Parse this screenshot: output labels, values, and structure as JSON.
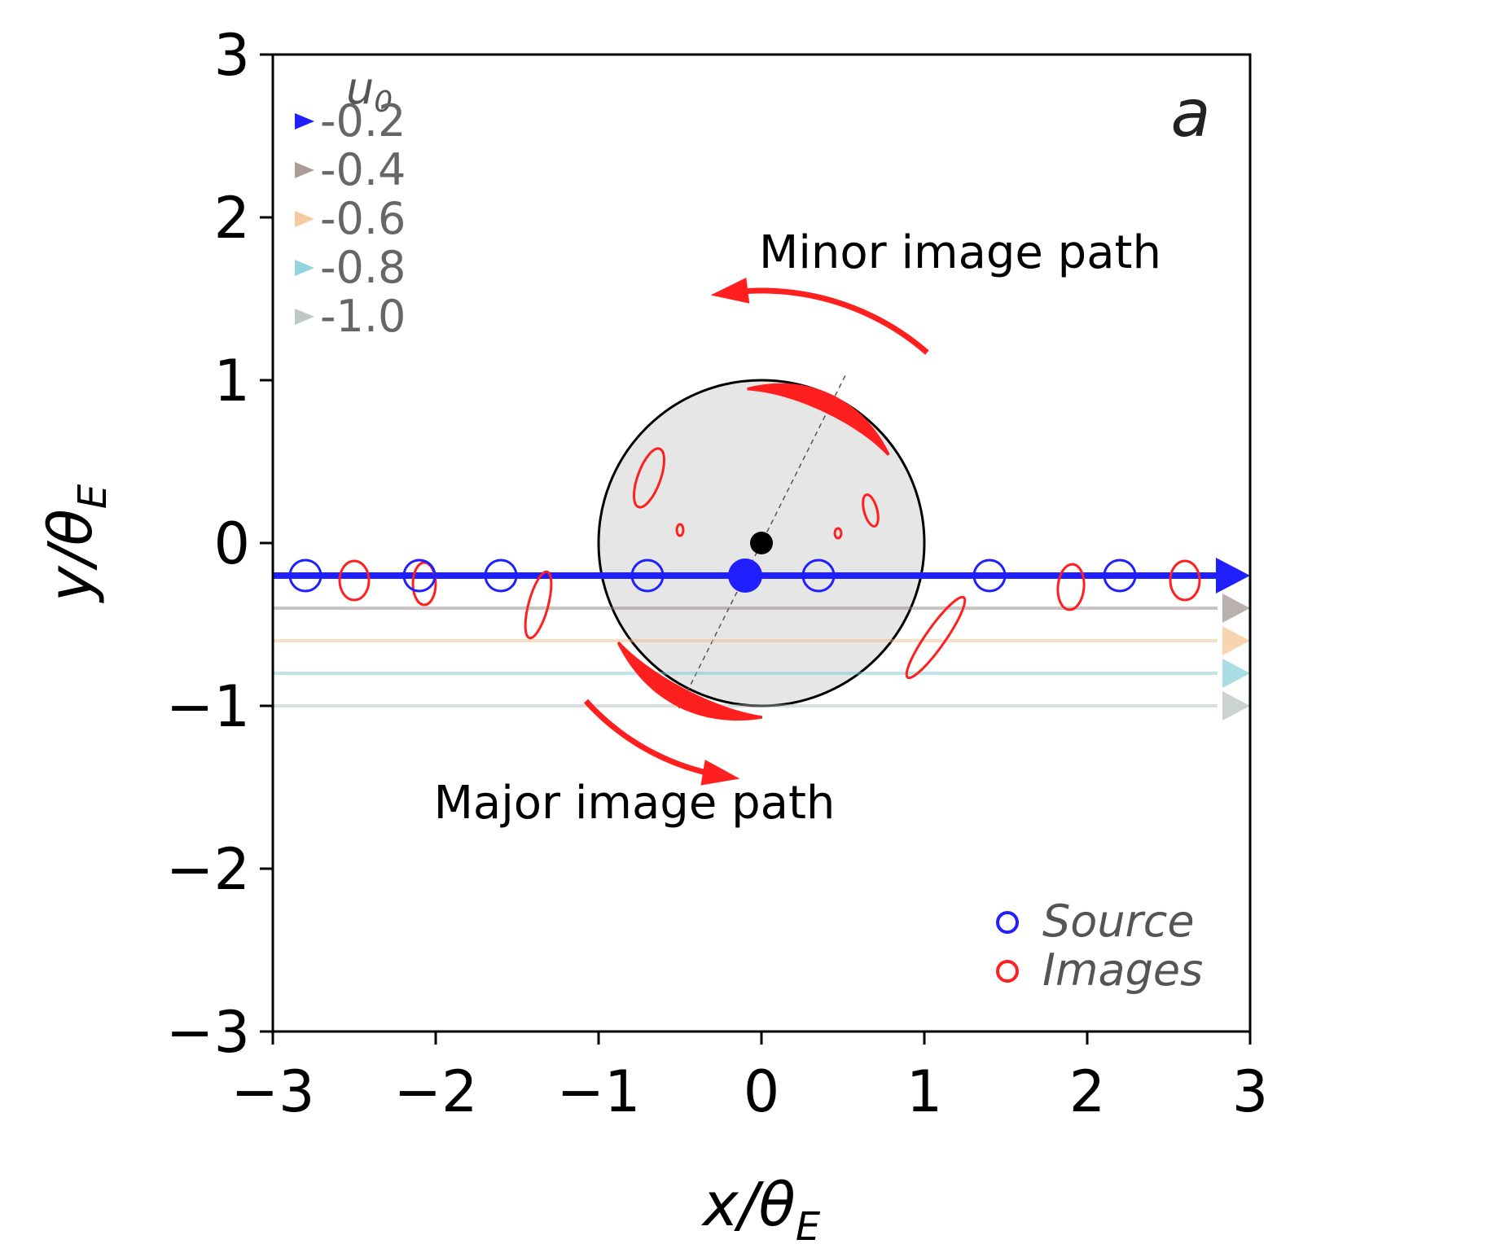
{
  "chart_data": {
    "type": "scatter",
    "panel_label": "a",
    "xlabel": "x/θ",
    "xlabel_sub": "E",
    "ylabel": "y/θ",
    "ylabel_sub": "E",
    "xlim": [
      -3,
      3
    ],
    "ylim": [
      -3,
      3
    ],
    "xticks": [
      -3,
      -2,
      -1,
      0,
      1,
      2,
      3
    ],
    "yticks": [
      -3,
      -2,
      -1,
      0,
      1,
      2,
      3
    ],
    "xtick_labels": [
      "−3",
      "−2",
      "−1",
      "0",
      "1",
      "2",
      "3"
    ],
    "ytick_labels": [
      "−3",
      "−2",
      "−1",
      "0",
      "1",
      "2",
      "3"
    ],
    "einstein_ring": {
      "center": [
        0,
        0
      ],
      "radius": 1,
      "fill": "#e6e6e6"
    },
    "lens": {
      "x": 0,
      "y": 0,
      "color": "#000000"
    },
    "trajectories_legend_title": "u",
    "trajectories_legend_title_sub": "0",
    "trajectories": [
      {
        "u0": -0.2,
        "label": "-0.2",
        "color": "#1f1fff"
      },
      {
        "u0": -0.4,
        "label": "-0.4",
        "color": "#8c7b78"
      },
      {
        "u0": -0.6,
        "label": "-0.6",
        "color": "#f4b77e"
      },
      {
        "u0": -0.8,
        "label": "-0.8",
        "color": "#6ec6d2"
      },
      {
        "u0": -1.0,
        "label": "-1.0",
        "color": "#a9b4b4"
      }
    ],
    "source_positions": [
      {
        "x": -2.8,
        "y": -0.2
      },
      {
        "x": -2.1,
        "y": -0.2
      },
      {
        "x": -1.6,
        "y": -0.2
      },
      {
        "x": -0.7,
        "y": -0.2
      },
      {
        "x": 0.35,
        "y": -0.2
      },
      {
        "x": 1.4,
        "y": -0.2
      },
      {
        "x": 2.2,
        "y": -0.2
      }
    ],
    "current_source": {
      "x": -0.1,
      "y": -0.2
    },
    "images": [
      {
        "x": -2.5,
        "y": -0.23,
        "rx": 0.09,
        "ry": 0.12,
        "angle": 0
      },
      {
        "x": -2.07,
        "y": -0.25,
        "rx": 0.07,
        "ry": 0.13,
        "angle": 0
      },
      {
        "x": -1.37,
        "y": -0.38,
        "rx": 0.06,
        "ry": 0.21,
        "angle": 15
      },
      {
        "x": 1.9,
        "y": -0.27,
        "rx": 0.08,
        "ry": 0.14,
        "angle": 5
      },
      {
        "x": 2.6,
        "y": -0.23,
        "rx": 0.09,
        "ry": 0.12,
        "angle": 0
      },
      {
        "x": -0.69,
        "y": 0.4,
        "rx": 0.07,
        "ry": 0.19,
        "angle": 20
      },
      {
        "x": 0.67,
        "y": 0.2,
        "rx": 0.04,
        "ry": 0.1,
        "angle": -15
      },
      {
        "x": 1.07,
        "y": -0.58,
        "rx": 0.06,
        "ry": 0.3,
        "angle": 35
      },
      {
        "x": -0.5,
        "y": 0.08,
        "rx": 0.02,
        "ry": 0.035,
        "angle": 0
      },
      {
        "x": 0.47,
        "y": 0.06,
        "rx": 0.02,
        "ry": 0.03,
        "angle": 0
      }
    ],
    "image_arcs": [
      {
        "name": "minor",
        "r": 0.95,
        "theta_start": 95,
        "theta_end": 35
      },
      {
        "name": "major",
        "r": 1.07,
        "theta_start": 215,
        "theta_end": 270
      }
    ],
    "path_arrows": [
      {
        "name": "minor",
        "r": 1.55,
        "theta_start": 49,
        "theta_end": 99
      },
      {
        "name": "major",
        "r": 1.45,
        "theta_start": 222,
        "theta_end": 262
      }
    ],
    "annotations": {
      "minor": {
        "text": "Minor image path",
        "x": 1.22,
        "y": 1.69
      },
      "major": {
        "text": "Major image path",
        "x": -0.78,
        "y": -1.69
      }
    },
    "point_legend": [
      {
        "label": "Source",
        "color": "#1f1fff"
      },
      {
        "label": "Images",
        "color": "#ff1f1f"
      }
    ],
    "point_legend_loc": "lower-right",
    "trajectory_legend_loc": "upper-left",
    "grid": false
  }
}
